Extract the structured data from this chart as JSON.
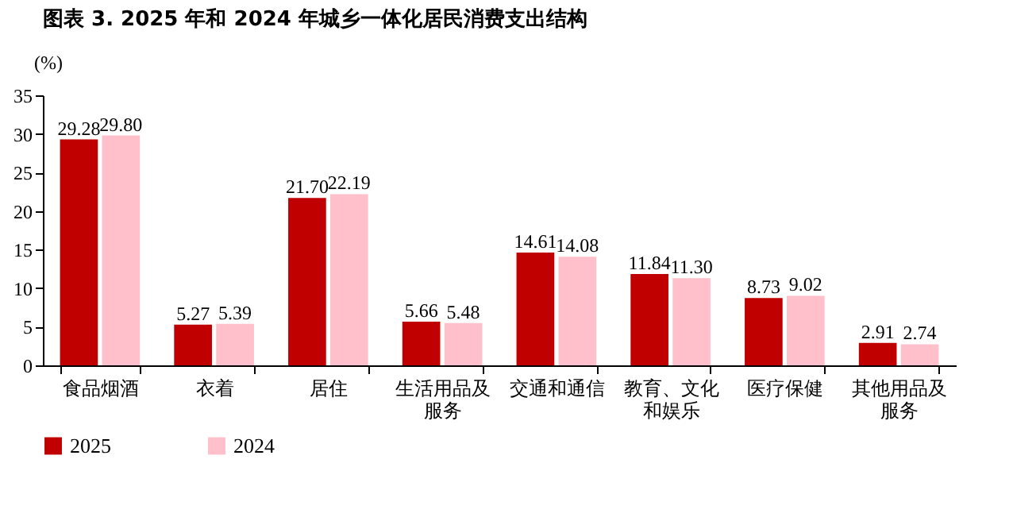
{
  "chart_data": {
    "type": "bar",
    "title": "图表 3. 2025 年和 2024 年城乡一体化居民消费支出结构",
    "ylabel": "(%)",
    "categories": [
      "食品烟酒",
      "衣着",
      "居住",
      "生活用品及服务",
      "交通和通信",
      "教育、文化和娱乐",
      "医疗保健",
      "其他用品及服务"
    ],
    "series": [
      {
        "name": "2025",
        "color": "#c00000",
        "values": [
          29.28,
          5.27,
          21.7,
          5.66,
          14.61,
          11.84,
          8.73,
          2.91
        ],
        "value_labels": [
          "29.28",
          "5.27",
          "21.70",
          "5.66",
          "14.61",
          "11.84",
          "8.73",
          "2.91"
        ]
      },
      {
        "name": "2024",
        "color": "#ffc0cb",
        "values": [
          29.8,
          5.39,
          22.19,
          5.48,
          14.08,
          11.3,
          9.02,
          2.74
        ],
        "value_labels": [
          "29.80",
          "5.39",
          "22.19",
          "5.48",
          "14.08",
          "11.30",
          "9.02",
          "2.74"
        ]
      }
    ],
    "ylim": [
      0,
      35
    ],
    "yticks": [
      0,
      5,
      10,
      15,
      20,
      25,
      30,
      35
    ],
    "grid": false,
    "legend": "bottom"
  }
}
